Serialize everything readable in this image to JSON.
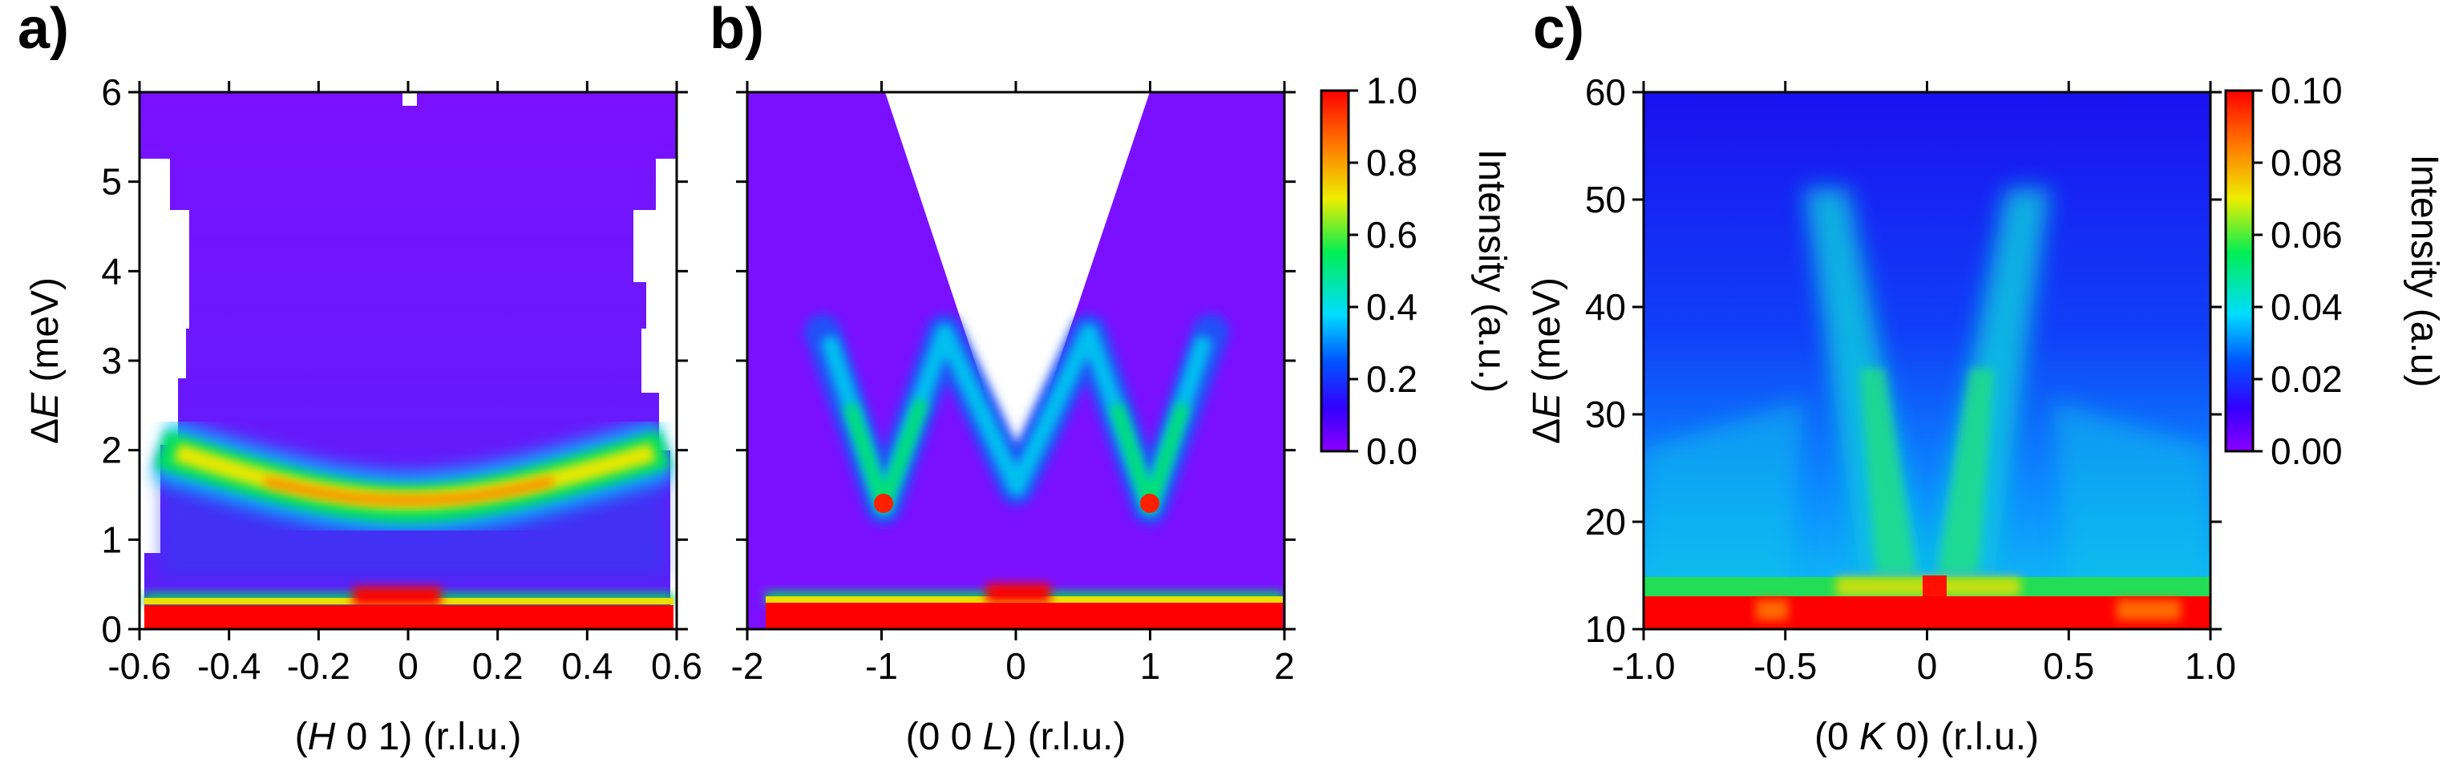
{
  "chart_data": [
    {
      "type": "heatmap",
      "panel_label": "a)",
      "xlabel_pre": "(",
      "xlabel_italic": "H",
      "xlabel_post": " 0 1) (r.l.u.)",
      "ylabel_prefix": "Δ",
      "ylabel_italic": "E",
      "ylabel_suffix": " (meV)",
      "xlim": [
        -0.6,
        0.6
      ],
      "ylim": [
        0,
        6
      ],
      "xticks": [
        "-0.6",
        "-0.4",
        "-0.2",
        "0",
        "0.2",
        "0.4",
        "0.6"
      ],
      "yticks": [
        "0",
        "1",
        "2",
        "3",
        "4",
        "5",
        "6"
      ],
      "colormap": "rainbow (purple-blue-cyan-green-yellow-red)",
      "colorbar_shared_with": "b)",
      "features": [
        {
          "kind": "dispersive band",
          "description": "mode with minimum near H=0",
          "points": [
            [
              -0.5,
              2.0
            ],
            [
              -0.3,
              1.7
            ],
            [
              -0.1,
              1.45
            ],
            [
              0,
              1.4
            ],
            [
              0.1,
              1.45
            ],
            [
              0.3,
              1.7
            ],
            [
              0.5,
              2.0
            ]
          ],
          "intensity": 0.8
        },
        {
          "kind": "elastic line",
          "energy": 0.3,
          "intensity": 1.0
        }
      ]
    },
    {
      "type": "heatmap",
      "panel_label": "b)",
      "xlabel_pre": "(0 0 ",
      "xlabel_italic": "L",
      "xlabel_post": ") (r.l.u.)",
      "xlim": [
        -2,
        2
      ],
      "ylim": [
        0,
        6
      ],
      "xticks": [
        "-2",
        "-1",
        "0",
        "1",
        "2"
      ],
      "yticks": [
        "0",
        "1",
        "2",
        "3",
        "4",
        "5",
        "6"
      ],
      "colorbar": {
        "label": "Intensity (a.u.)",
        "range": [
          0.0,
          1.0
        ],
        "ticks": [
          "0.0",
          "0.2",
          "0.4",
          "0.6",
          "0.8",
          "1.0"
        ]
      },
      "features": [
        {
          "kind": "dispersive band",
          "description": "zigzag dispersion with minima at L=-1, 1 and maxima near L=-1.5, -0.5, 0.5, 1.5",
          "points": [
            [
              -1.5,
              3.2
            ],
            [
              -1,
              1.4
            ],
            [
              -0.5,
              3.2
            ],
            [
              0,
              1.6
            ],
            [
              0.5,
              3.2
            ],
            [
              1,
              1.4
            ],
            [
              1.5,
              3.2
            ]
          ],
          "intensity": 0.5
        },
        {
          "kind": "elastic line",
          "energy": 0.2,
          "intensity": 1.0
        }
      ]
    },
    {
      "type": "heatmap",
      "panel_label": "c)",
      "xlabel_pre": "(0 ",
      "xlabel_italic": "K",
      "xlabel_post": " 0) (r.l.u.)",
      "ylabel_prefix": "Δ",
      "ylabel_italic": "E",
      "ylabel_suffix": " (meV)",
      "xlim": [
        -1.0,
        1.0
      ],
      "ylim": [
        10,
        60
      ],
      "xticks": [
        "-1.0",
        "-0.5",
        "0",
        "0.5",
        "1.0"
      ],
      "yticks": [
        "10",
        "20",
        "30",
        "40",
        "50",
        "60"
      ],
      "colorbar": {
        "label": "Intensity (a.u)",
        "range": [
          0.0,
          0.1
        ],
        "ticks": [
          "0.00",
          "0.02",
          "0.04",
          "0.06",
          "0.08",
          "0.10"
        ]
      },
      "features": [
        {
          "kind": "dispersive branch",
          "description": "steep branch rising from K=-0.25 to K=-0.55",
          "points": [
            [
              -0.25,
              16
            ],
            [
              -0.55,
              51
            ]
          ],
          "intensity": 0.03
        },
        {
          "kind": "dispersive branch",
          "description": "steep branch rising from K=0.25 to K=0.55",
          "points": [
            [
              0.25,
              16
            ],
            [
              0.55,
              51
            ]
          ],
          "intensity": 0.03
        },
        {
          "kind": "elastic / low energy line",
          "energy": 12,
          "intensity": 0.1
        }
      ]
    }
  ]
}
